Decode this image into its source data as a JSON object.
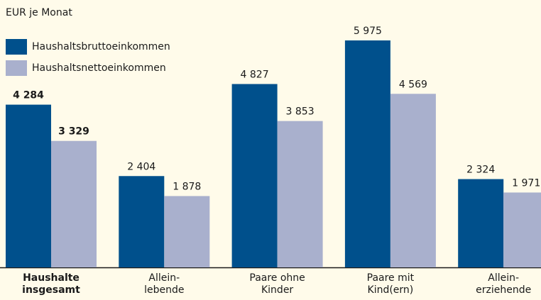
{
  "chart_data": {
    "type": "bar",
    "title": "EUR je Monat",
    "categories": [
      "Haushalte\ninsgesamt",
      "Allein-\nlebende",
      "Paare ohne\nKinder",
      "Paare mit\nKind(ern)",
      "Allein-\nerziehende"
    ],
    "series": [
      {
        "name": "Haushaltsbruttoeinkommen",
        "color": "#00508c",
        "values": [
          4284,
          2404,
          4827,
          5975,
          2324
        ],
        "value_labels": [
          "4 284",
          "2 404",
          "4 827",
          "5 975",
          "2 324"
        ]
      },
      {
        "name": "Haushaltsnettoeinkommen",
        "color": "#a9b0cd",
        "values": [
          3329,
          1878,
          3853,
          4569,
          1971
        ],
        "value_labels": [
          "3 329",
          "1 878",
          "3 853",
          "4 569",
          "1 971"
        ]
      }
    ],
    "legend": "top-left",
    "grid": false
  }
}
